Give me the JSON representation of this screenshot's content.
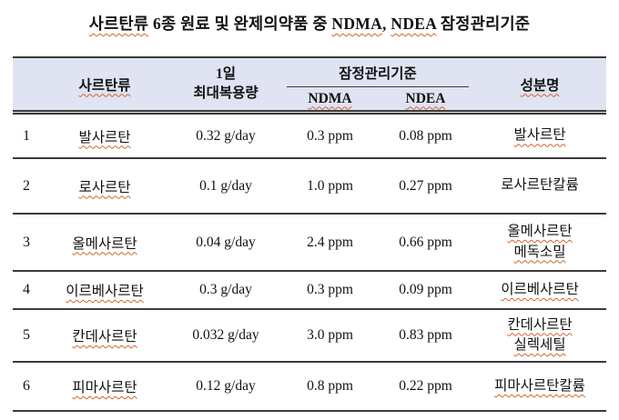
{
  "title": {
    "seg1": "사르탄류",
    "seg2": " 6종 원료 및 완제의약품 중 ",
    "seg3": "NDMA",
    "seg4": ", ",
    "seg5": "NDEA",
    "seg6": " 잠정관리기준"
  },
  "table": {
    "headers": {
      "sartan": "사르탄류",
      "daily_dose_line1": "1일",
      "daily_dose_line2": "최대복용량",
      "interim_standard": "잠정관리기준",
      "ndma": "NDMA",
      "ndea": "NDEA",
      "ingredient": "성분명"
    },
    "rows": [
      {
        "no": "1",
        "name": "발사르탄",
        "dose": "0.32 g/day",
        "ndma": "0.3 ppm",
        "ndea": "0.08 ppm",
        "ingredient": [
          "발사르탄"
        ]
      },
      {
        "no": "2",
        "name": "로사르탄",
        "dose": "0.1 g/day",
        "ndma": "1.0 ppm",
        "ndea": "0.27 ppm",
        "ingredient": [
          "로사르탄칼륨"
        ]
      },
      {
        "no": "3",
        "name": "올메사르탄",
        "dose": "0.04 g/day",
        "ndma": "2.4 ppm",
        "ndea": "0.66 ppm",
        "ingredient": [
          "올메사르탄",
          "메독소밀"
        ]
      },
      {
        "no": "4",
        "name": "이르베사르탄",
        "dose": "0.3 g/day",
        "ndma": "0.3 ppm",
        "ndea": "0.09 ppm",
        "ingredient": [
          "이르베사르탄"
        ]
      },
      {
        "no": "5",
        "name": "칸데사르탄",
        "dose": "0.032 g/day",
        "ndma": "3.0 ppm",
        "ndea": "0.83 ppm",
        "ingredient": [
          "칸데사르탄",
          "실렉세틸"
        ]
      },
      {
        "no": "6",
        "name": "피마사르탄",
        "dose": "0.12 g/day",
        "ndma": "0.8 ppm",
        "ndea": "0.22 ppm",
        "ingredient": [
          "피마사르탄칼륨"
        ]
      }
    ]
  },
  "colors": {
    "header_bg": "#dfe3f2",
    "border": "#3b3b3b",
    "spellcheck_underline": "#d0642e",
    "text": "#111111"
  }
}
